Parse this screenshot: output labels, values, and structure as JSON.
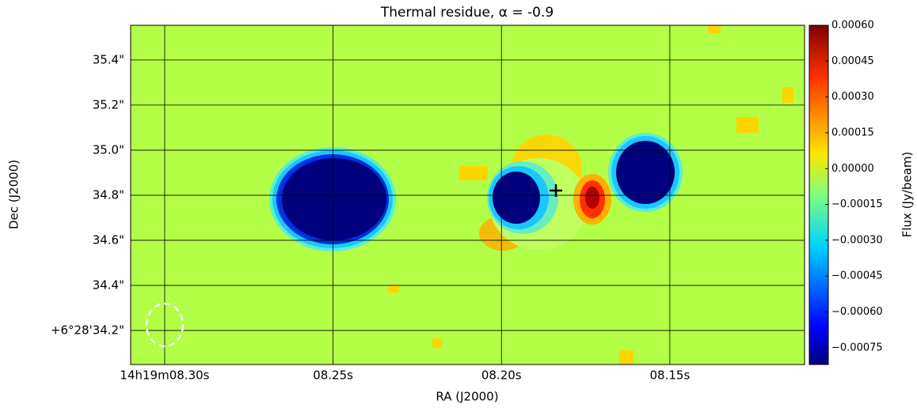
{
  "chart_data": {
    "type": "heatmap",
    "title": "Thermal residue, α = -0.9",
    "x_label": "RA (J2000)",
    "y_label": "Dec (J2000)",
    "xlim": [
      8.3101,
      8.11
    ],
    "xticks": [
      {
        "value": 8.3,
        "label": "14h19m08.30s"
      },
      {
        "value": 8.25,
        "label": "08.25s"
      },
      {
        "value": 8.2,
        "label": "08.20s"
      },
      {
        "value": 8.15,
        "label": "08.15s"
      }
    ],
    "ylim": [
      34.049,
      35.554
    ],
    "yticks": [
      {
        "value": 34.2,
        "label": "+6°28'34.2\""
      },
      {
        "value": 34.4,
        "label": "34.4\""
      },
      {
        "value": 34.6,
        "label": "34.6\""
      },
      {
        "value": 34.8,
        "label": "34.8\""
      },
      {
        "value": 35.0,
        "label": "35.0\""
      },
      {
        "value": 35.2,
        "label": "35.2\""
      },
      {
        "value": 35.4,
        "label": "35.4\""
      }
    ],
    "grid": true,
    "colorbar": {
      "label": "Flux (Jy/beam)",
      "lim": [
        -0.00082,
        0.0006
      ],
      "ticks": [
        {
          "value": 0.0006,
          "label": "0.00060"
        },
        {
          "value": 0.00045,
          "label": "0.00045"
        },
        {
          "value": 0.0003,
          "label": "0.00030"
        },
        {
          "value": 0.00015,
          "label": "0.00015"
        },
        {
          "value": 0,
          "label": "0.00000"
        },
        {
          "value": -0.00015,
          "label": "−0.00015"
        },
        {
          "value": -0.0003,
          "label": "−0.00030"
        },
        {
          "value": -0.00045,
          "label": "−0.00045"
        },
        {
          "value": -0.0006,
          "label": "−0.00060"
        },
        {
          "value": -0.00075,
          "label": "−0.00075"
        }
      ]
    }
  }
}
